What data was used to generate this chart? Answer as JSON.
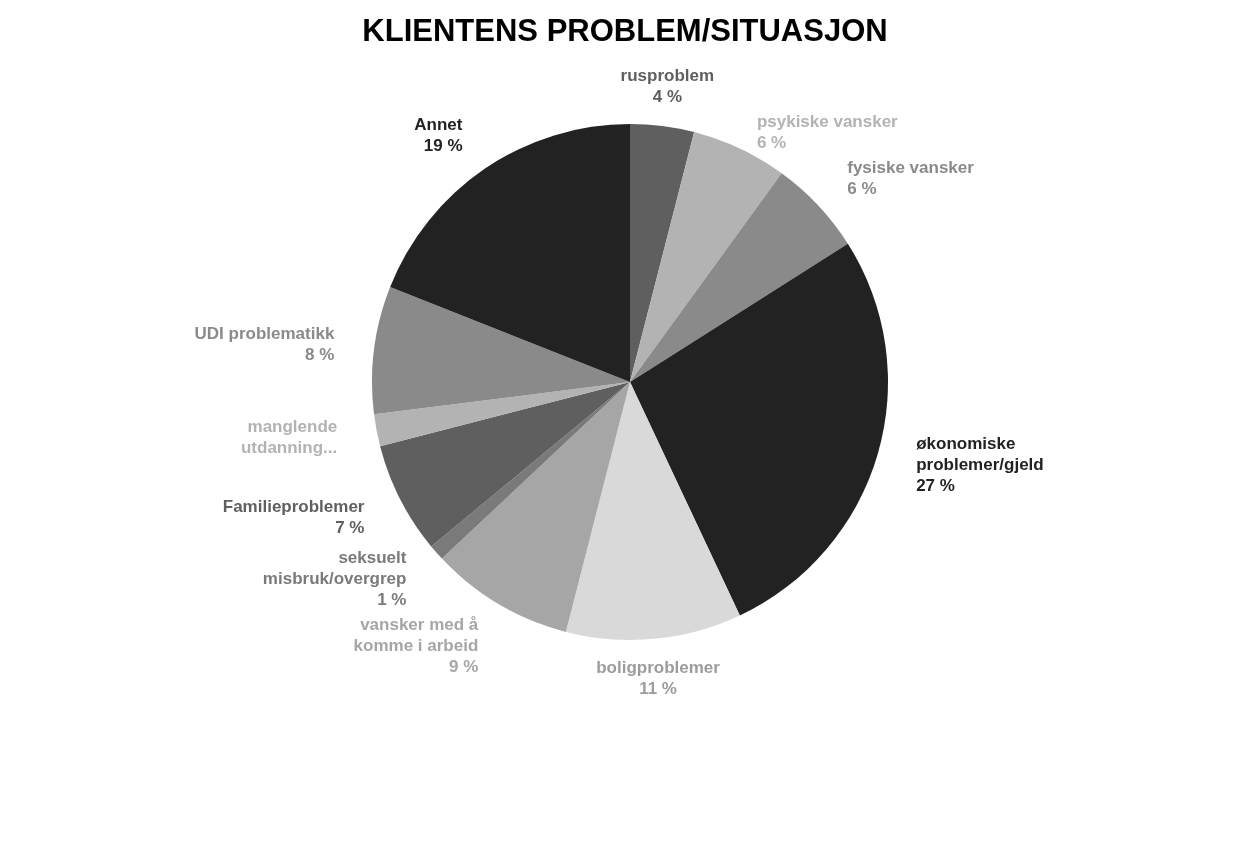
{
  "chart_data": {
    "type": "pie",
    "title": "KLIENTENS PROBLEM/SITUASJON",
    "categories": [
      "rusproblem",
      "psykiske vansker",
      "fysiske vansker",
      "økonomiske problemer/gjeld",
      "boligproblemer",
      "vansker med å komme i arbeid",
      "seksuelt misbruk/overgrep",
      "Familieproblemer",
      "manglende utdanning...",
      "UDI problematikk",
      "Annet"
    ],
    "values": [
      4,
      6,
      6,
      27,
      11,
      9,
      1,
      7,
      2,
      8,
      19
    ],
    "value_labels": [
      "4 %",
      "6 %",
      "6 %",
      "27 %",
      "11 %",
      "9 %",
      "1 %",
      "7 %",
      null,
      "8 %",
      "19 %"
    ],
    "colors": [
      "#5f5f5f",
      "#b3b3b3",
      "#8a8a8a",
      "#222222",
      "#d9d9d9",
      "#a6a6a6",
      "#7a7a7a",
      "#5f5f5f",
      "#b3b3b3",
      "#8a8a8a",
      "#222222"
    ]
  }
}
